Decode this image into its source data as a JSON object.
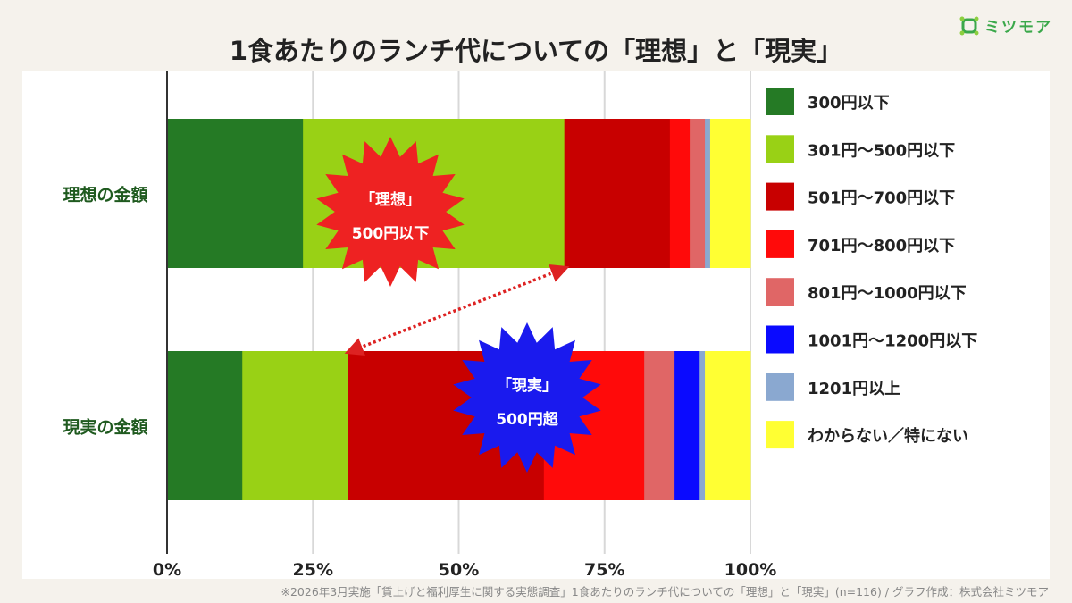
{
  "brand": {
    "name": "ミツモア",
    "color": "#3aa84a"
  },
  "title": "1食あたりのランチ代についての「理想」と「現実」",
  "footnote": "※2026年3月実施「賃上げと福利厚生に関する実態調査」1食あたりのランチ代についての「理想」と「現実」(n=116) / グラフ作成：株式会社ミツモア",
  "chart_data": {
    "type": "bar",
    "orientation": "horizontal",
    "stacked": "percent",
    "xlim": [
      0,
      100
    ],
    "x_ticks": [
      "0%",
      "25%",
      "50%",
      "75%",
      "100%"
    ],
    "grid": true,
    "legend_position": "right",
    "categories": [
      "理想の金額",
      "現実の金額"
    ],
    "series": [
      {
        "name": "300円以下",
        "color": "#257a25",
        "values": [
          23.3,
          12.9
        ]
      },
      {
        "name": "301円〜500円以下",
        "color": "#99d115",
        "values": [
          44.8,
          18.1
        ]
      },
      {
        "name": "501円〜700円以下",
        "color": "#c80000",
        "values": [
          18.1,
          33.6
        ]
      },
      {
        "name": "701円〜800円以下",
        "color": "#ff0a0a",
        "values": [
          3.4,
          17.2
        ]
      },
      {
        "name": "801円〜1000円以下",
        "color": "#e06666",
        "values": [
          2.6,
          5.2
        ]
      },
      {
        "name": "1001円〜1200円以下",
        "color": "#0a0aff",
        "values": [
          0,
          4.3
        ]
      },
      {
        "name": "1201円以上",
        "color": "#8aa8d0",
        "values": [
          0.9,
          0.9
        ]
      },
      {
        "name": "わからない／特にない",
        "color": "#ffff33",
        "values": [
          6.9,
          7.8
        ]
      }
    ],
    "annotations": [
      {
        "lines": [
          "「理想」",
          "500円以下"
        ],
        "color": "#ee2222",
        "bar": 0
      },
      {
        "lines": [
          "「現実」",
          "500円超"
        ],
        "color": "#1a1aee",
        "bar": 1
      }
    ]
  }
}
